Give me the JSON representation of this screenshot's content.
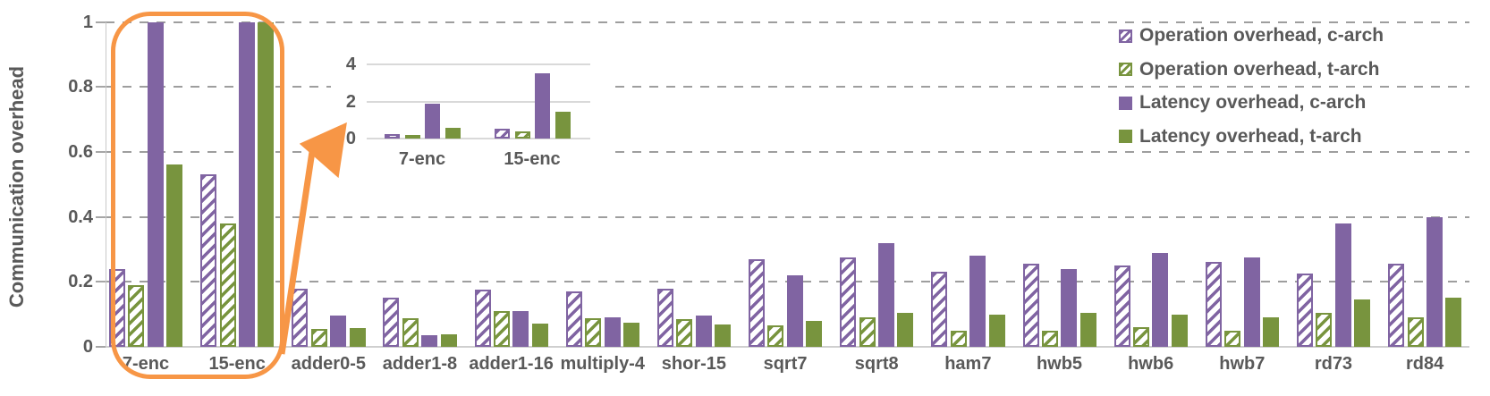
{
  "chart_data": {
    "type": "bar",
    "title": "",
    "ylabel": "Communication overhead",
    "xlabel": "",
    "ylim": [
      0,
      1
    ],
    "yticks": [
      {
        "v": 0,
        "label": "0"
      },
      {
        "v": 0.2,
        "label": "0.2"
      },
      {
        "v": 0.4,
        "label": "0.4"
      },
      {
        "v": 0.6,
        "label": "0.6"
      },
      {
        "v": 0.8,
        "label": "0.8"
      },
      {
        "v": 1,
        "label": "1"
      }
    ],
    "grid": "dashed-horizontal",
    "legend_position": "top-right",
    "categories": [
      "7-enc",
      "15-enc",
      "adder0-5",
      "adder1-8",
      "adder1-16",
      "multiply-4",
      "shor-15",
      "sqrt7",
      "sqrt8",
      "ham7",
      "hwb5",
      "hwb6",
      "hwb7",
      "rd73",
      "rd84"
    ],
    "series": [
      {
        "key": "op-c",
        "name": "Operation overhead, c-arch",
        "pattern": "hatched",
        "color": "#8064A2",
        "values": [
          0.24,
          0.53,
          0.18,
          0.15,
          0.175,
          0.17,
          0.18,
          0.27,
          0.275,
          0.23,
          0.255,
          0.25,
          0.26,
          0.225,
          0.255
        ]
      },
      {
        "key": "op-t",
        "name": "Operation overhead, t-arch",
        "pattern": "hatched",
        "color": "#78943E",
        "values": [
          0.19,
          0.38,
          0.055,
          0.088,
          0.11,
          0.088,
          0.086,
          0.065,
          0.09,
          0.05,
          0.05,
          0.06,
          0.05,
          0.105,
          0.09
        ]
      },
      {
        "key": "lat-c",
        "name": "Latency overhead, c-arch",
        "pattern": "solid",
        "color": "#8064A2",
        "values": [
          1.9,
          3.5,
          0.095,
          0.036,
          0.11,
          0.09,
          0.097,
          0.22,
          0.32,
          0.28,
          0.24,
          0.29,
          0.275,
          0.38,
          0.4
        ]
      },
      {
        "key": "lat-t",
        "name": "Latency overhead, t-arch",
        "pattern": "solid",
        "color": "#78943E",
        "values": [
          0.56,
          1.45,
          0.057,
          0.038,
          0.071,
          0.074,
          0.07,
          0.08,
          0.105,
          0.1,
          0.105,
          0.098,
          0.091,
          0.146,
          0.15
        ]
      }
    ],
    "clipped_at_ymax": true
  },
  "inset": {
    "description": "zoom of 7-enc and 15-enc groups",
    "categories": [
      "7-enc",
      "15-enc"
    ],
    "ylim": [
      0,
      4
    ],
    "yticks": [
      {
        "v": 0,
        "label": "0"
      },
      {
        "v": 2,
        "label": "2"
      },
      {
        "v": 4,
        "label": "4"
      }
    ],
    "grid": "solid-horizontal"
  },
  "annotation": {
    "color": "#F79646",
    "shape": "rounded-rect-with-arrow",
    "highlighted_categories": [
      "7-enc",
      "15-enc"
    ]
  }
}
